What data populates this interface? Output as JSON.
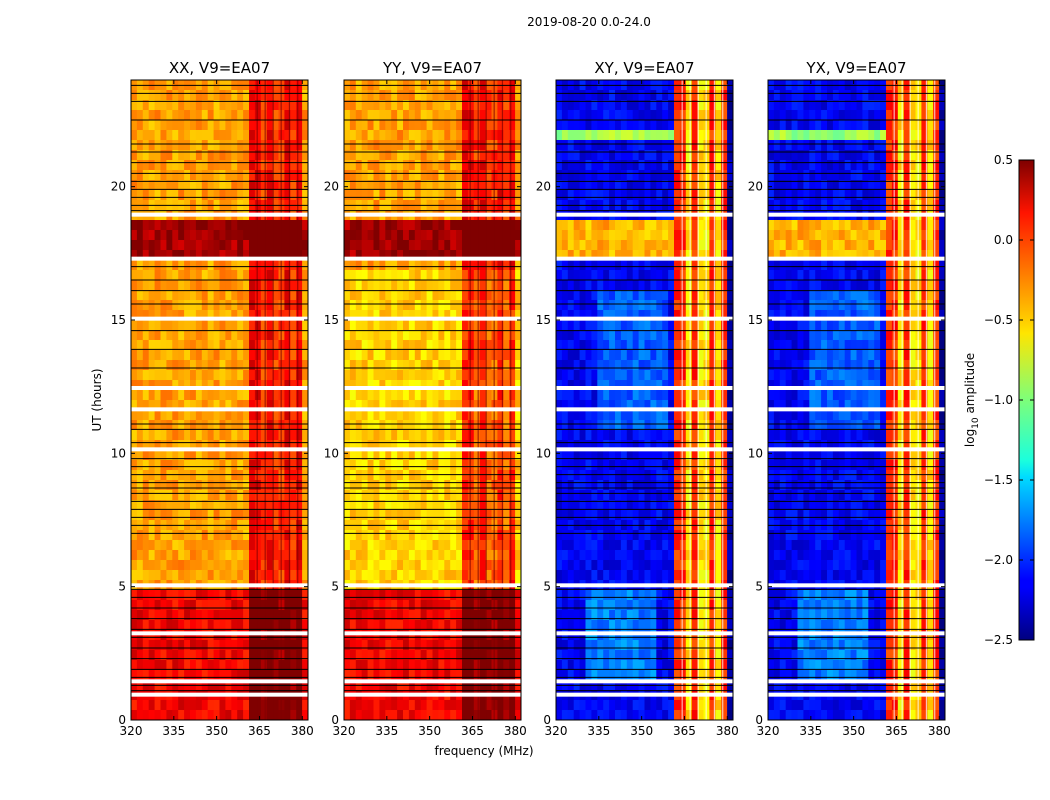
{
  "figure": {
    "title": "2019-08-20 0.0-24.0"
  },
  "chart_data": {
    "type": "heatmap",
    "title": "2019-08-20 0.0-24.0",
    "xlabel": "frequency (MHz)",
    "ylabel": "UT (hours)",
    "xlim": [
      320,
      382
    ],
    "ylim": [
      0,
      24
    ],
    "xticks": [
      320,
      335,
      350,
      365,
      380
    ],
    "yticks": [
      0,
      5,
      10,
      15,
      20
    ],
    "panels": [
      {
        "title": "XX, V9=EA07",
        "pol": "XX"
      },
      {
        "title": "YY, V9=EA07",
        "pol": "YY"
      },
      {
        "title": "XY, V9=EA07",
        "pol": "XY"
      },
      {
        "title": "YX, V9=EA07",
        "pol": "YX"
      }
    ],
    "colorbar": {
      "label": "log",
      "label_sub": "10",
      "label_rest": " amplitude",
      "range": [
        -2.5,
        0.5
      ],
      "ticks": [
        "0.5",
        "0.0",
        "−0.5",
        "−1.0",
        "−1.5",
        "−2.0",
        "−2.5"
      ],
      "colormap": "jet"
    }
  }
}
